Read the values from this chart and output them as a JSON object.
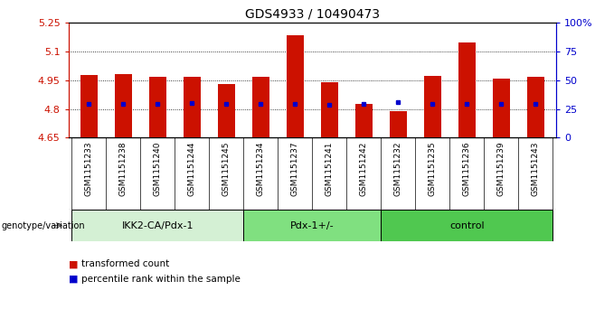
{
  "title": "GDS4933 / 10490473",
  "samples": [
    "GSM1151233",
    "GSM1151238",
    "GSM1151240",
    "GSM1151244",
    "GSM1151245",
    "GSM1151234",
    "GSM1151237",
    "GSM1151241",
    "GSM1151242",
    "GSM1151232",
    "GSM1151235",
    "GSM1151236",
    "GSM1151239",
    "GSM1151243"
  ],
  "bar_tops": [
    4.98,
    4.985,
    4.967,
    4.968,
    4.932,
    4.968,
    5.185,
    4.942,
    4.825,
    4.79,
    4.975,
    5.148,
    4.96,
    4.967
  ],
  "blue_vals": [
    4.828,
    4.826,
    4.826,
    4.83,
    4.825,
    4.826,
    4.826,
    4.82,
    4.826,
    4.834,
    4.826,
    4.826,
    4.826,
    4.826
  ],
  "bar_bottom": 4.65,
  "ylim": [
    4.65,
    5.25
  ],
  "yticks": [
    4.65,
    4.8,
    4.95,
    5.1,
    5.25
  ],
  "right_ylim": [
    0,
    100
  ],
  "right_yticks": [
    0,
    25,
    50,
    75,
    100
  ],
  "right_yticklabels": [
    "0",
    "25",
    "50",
    "75",
    "100%"
  ],
  "groups": [
    {
      "label": "IKK2-CA/Pdx-1",
      "start": 0,
      "end": 5,
      "color": "#d4f0d4"
    },
    {
      "label": "Pdx-1+/-",
      "start": 5,
      "end": 9,
      "color": "#80e080"
    },
    {
      "label": "control",
      "start": 9,
      "end": 14,
      "color": "#50c850"
    }
  ],
  "bar_color": "#cc1100",
  "dot_color": "#0000cc",
  "left_tick_color": "#cc1100",
  "right_tick_color": "#0000cc",
  "bar_width": 0.5,
  "annotation_label": "genotype/variation",
  "legend_items": [
    {
      "color": "#cc1100",
      "label": "transformed count"
    },
    {
      "color": "#0000cc",
      "label": "percentile rank within the sample"
    }
  ],
  "label_area_color": "#d0d0d0"
}
